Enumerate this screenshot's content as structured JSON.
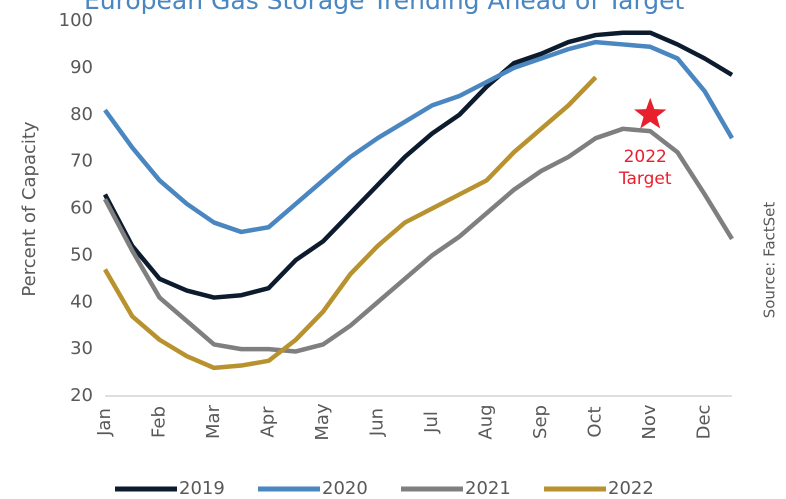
{
  "chart_data": {
    "type": "line",
    "title": "European Gas Storage Trending Ahead of Target",
    "y_label": "Percent of Capacity",
    "source": "Source: FactSet",
    "categories": [
      "Jan",
      null,
      "Feb",
      null,
      "Mar",
      null,
      "Apr",
      null,
      "May",
      null,
      "Jun",
      null,
      "Jul",
      null,
      "Aug",
      null,
      "Sep",
      null,
      "Oct",
      null,
      "Nov",
      null,
      "Dec",
      null
    ],
    "series": [
      {
        "name": "2019",
        "color": "#0d1b2e",
        "values": [
          63,
          52,
          45,
          42.5,
          41,
          41.5,
          43,
          49,
          53,
          59,
          65,
          71,
          76,
          80,
          86,
          91,
          93,
          95.5,
          97,
          97.5,
          97.5,
          95,
          92,
          88.5
        ]
      },
      {
        "name": "2020",
        "color": "#4a86c0",
        "values": [
          81,
          73,
          66,
          61,
          57,
          55,
          56,
          61,
          66,
          71,
          75,
          78.5,
          82,
          84,
          87,
          90,
          92,
          94,
          95.5,
          95,
          94.5,
          92,
          85,
          75
        ]
      },
      {
        "name": "2021",
        "color": "#7f7f7f",
        "values": [
          62,
          51,
          41,
          36,
          31,
          30,
          30,
          29.5,
          31,
          35,
          40,
          45,
          50,
          54,
          59,
          64,
          68,
          71,
          75,
          77,
          76.5,
          72,
          63,
          53.5
        ]
      },
      {
        "name": "2022",
        "color": "#b8922e",
        "values": [
          47,
          37,
          32,
          28.5,
          26,
          26.5,
          27.5,
          32,
          38,
          46,
          52,
          57,
          60,
          63,
          66,
          72,
          77,
          82,
          88,
          null,
          null,
          null,
          null,
          null
        ]
      }
    ],
    "annotation": {
      "lines": [
        "2022",
        "Target"
      ],
      "category": 20,
      "value": 80,
      "color": "#e8202e"
    },
    "ylim": [
      20,
      100
    ],
    "yticks": [
      20,
      30,
      40,
      50,
      60,
      70,
      80,
      90,
      100
    ],
    "legend": "bottom"
  }
}
